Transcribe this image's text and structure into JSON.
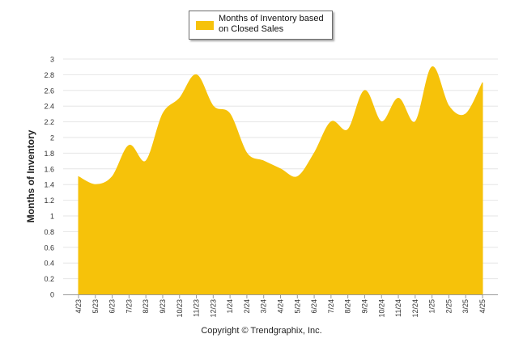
{
  "chart_data": {
    "type": "area",
    "title": "",
    "ylabel": "Months of Inventory",
    "xlabel": "",
    "ylim": [
      0,
      3
    ],
    "yticks": [
      "0",
      "0.2",
      "0.4",
      "0.6",
      "0.8",
      "1",
      "1.2",
      "1.4",
      "1.6",
      "1.8",
      "2",
      "2.2",
      "2.4",
      "2.6",
      "2.8",
      "3"
    ],
    "categories": [
      "4/23",
      "5/23",
      "6/23",
      "7/23",
      "8/23",
      "9/23",
      "10/23",
      "11/23",
      "12/23",
      "1/24",
      "2/24",
      "3/24",
      "4/24",
      "5/24",
      "6/24",
      "7/24",
      "8/24",
      "9/24",
      "10/24",
      "11/24",
      "12/24",
      "1/25",
      "2/25",
      "3/25",
      "4/25"
    ],
    "series": [
      {
        "name": "Months of Inventory based on Closed Sales",
        "values": [
          1.5,
          1.4,
          1.5,
          1.9,
          1.7,
          2.3,
          2.5,
          2.8,
          2.4,
          2.3,
          1.8,
          1.7,
          1.6,
          1.5,
          1.8,
          2.2,
          2.1,
          2.6,
          2.2,
          2.5,
          2.2,
          2.9,
          2.4,
          2.3,
          2.7
        ],
        "color": "#F6C20A"
      }
    ],
    "grid": true,
    "legend_position": "top-center"
  },
  "legend": {
    "label_line1": "Months of Inventory based",
    "label_line2": "on Closed Sales"
  },
  "footer": {
    "copyright": "Copyright © Trendgraphix, Inc."
  }
}
